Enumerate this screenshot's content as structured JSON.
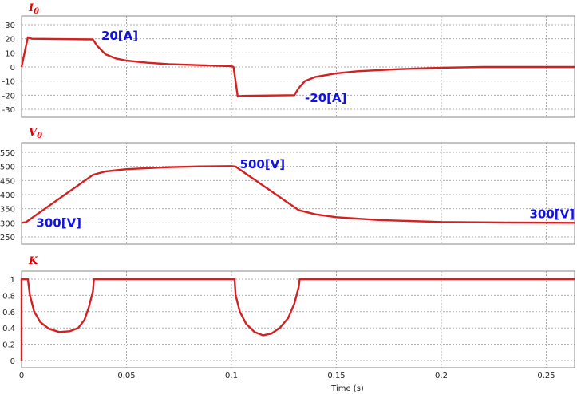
{
  "chart_data": [
    {
      "type": "line",
      "title": "I_0",
      "xlabel": "Time (s)",
      "ylabel": "",
      "xlim": [
        0,
        0.2635
      ],
      "ylim": [
        -35,
        35
      ],
      "yticks": [
        30,
        20,
        10,
        0,
        -10,
        -20,
        -30
      ],
      "grid": true,
      "annotations": [
        {
          "text": "20[A]",
          "x": 0.038,
          "y": 22
        },
        {
          "text": "-20[A]",
          "x": 0.135,
          "y": -22
        }
      ],
      "series": [
        {
          "name": "I0",
          "color": "#d42020",
          "x": [
            0,
            0.003,
            0.005,
            0.034,
            0.036,
            0.04,
            0.045,
            0.05,
            0.06,
            0.07,
            0.08,
            0.09,
            0.1,
            0.101,
            0.103,
            0.105,
            0.13,
            0.132,
            0.135,
            0.14,
            0.15,
            0.16,
            0.18,
            0.2,
            0.22,
            0.2635
          ],
          "y": [
            0,
            21,
            20,
            19.5,
            15,
            9,
            6,
            4.5,
            3,
            2,
            1.5,
            1,
            0.5,
            0,
            -21,
            -20.5,
            -20,
            -15,
            -10,
            -7,
            -4.5,
            -3,
            -1.5,
            -0.5,
            0,
            0
          ]
        }
      ]
    },
    {
      "type": "line",
      "title": "V_0",
      "xlabel": "Time (s)",
      "ylabel": "",
      "xlim": [
        0,
        0.2635
      ],
      "ylim": [
        235,
        565
      ],
      "yticks": [
        550,
        500,
        450,
        400,
        350,
        300,
        250
      ],
      "grid": true,
      "annotations": [
        {
          "text": "300[V]",
          "x": 0.007,
          "y": 300
        },
        {
          "text": "500[V]",
          "x": 0.104,
          "y": 508
        },
        {
          "text": "300[V]",
          "x": 0.242,
          "y": 330
        }
      ],
      "series": [
        {
          "name": "V0",
          "color": "#d42020",
          "x": [
            0,
            0.002,
            0.034,
            0.04,
            0.05,
            0.07,
            0.085,
            0.1,
            0.102,
            0.132,
            0.14,
            0.15,
            0.17,
            0.2,
            0.23,
            0.2635
          ],
          "y": [
            300,
            302,
            470,
            482,
            490,
            497,
            500,
            501,
            499,
            345,
            330,
            320,
            310,
            303,
            301,
            300
          ]
        }
      ]
    },
    {
      "type": "line",
      "title": "K",
      "xlabel": "Time (s)",
      "ylabel": "",
      "xlim": [
        0,
        0.2635
      ],
      "ylim": [
        -0.1,
        1.1
      ],
      "yticks": [
        1,
        0.8,
        0.6,
        0.4,
        0.2,
        0
      ],
      "xticks": [
        0,
        0.05,
        0.1,
        0.15,
        0.2,
        0.25
      ],
      "grid": true,
      "annotations": [],
      "series": [
        {
          "name": "K",
          "color": "#d42020",
          "x": [
            0,
            0,
            0.003,
            0.004,
            0.006,
            0.009,
            0.013,
            0.018,
            0.023,
            0.027,
            0.03,
            0.032,
            0.034,
            0.0345,
            0.1015,
            0.102,
            0.104,
            0.107,
            0.111,
            0.115,
            0.119,
            0.123,
            0.127,
            0.13,
            0.132,
            0.1325,
            0.2635
          ],
          "y": [
            0,
            1,
            1,
            0.8,
            0.6,
            0.47,
            0.39,
            0.35,
            0.36,
            0.4,
            0.5,
            0.65,
            0.85,
            1,
            1,
            0.8,
            0.6,
            0.45,
            0.35,
            0.31,
            0.33,
            0.4,
            0.52,
            0.7,
            0.9,
            1,
            1
          ]
        }
      ]
    }
  ]
}
